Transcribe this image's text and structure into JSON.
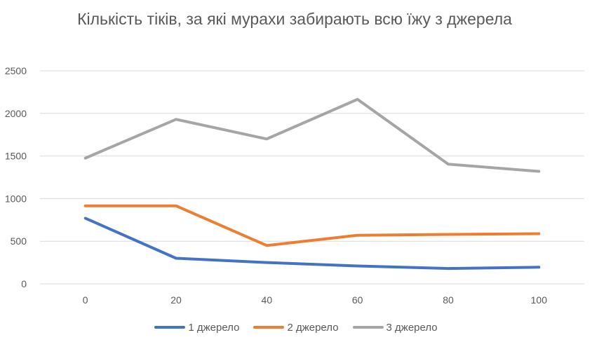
{
  "chart_data": {
    "type": "line",
    "title": "Кількість тіків, за які мурахи забирають всю їжу з джерела",
    "xlabel": "",
    "ylabel": "",
    "categories": [
      "0",
      "20",
      "40",
      "60",
      "80",
      "100"
    ],
    "ylim": [
      0,
      2500
    ],
    "yticks": [
      "0",
      "500",
      "1000",
      "1500",
      "2000",
      "2500"
    ],
    "grid": true,
    "legend_position": "bottom",
    "series": [
      {
        "name": "1 джерело",
        "color": "#4472C4",
        "values": [
          770,
          300,
          250,
          210,
          180,
          195
        ]
      },
      {
        "name": "2 джерело",
        "color": "#ED7D31",
        "values": [
          915,
          915,
          450,
          570,
          580,
          588
        ]
      },
      {
        "name": "3 джерело",
        "color": "#A5A5A5",
        "values": [
          1475,
          1930,
          1700,
          2165,
          1405,
          1320
        ]
      }
    ]
  }
}
